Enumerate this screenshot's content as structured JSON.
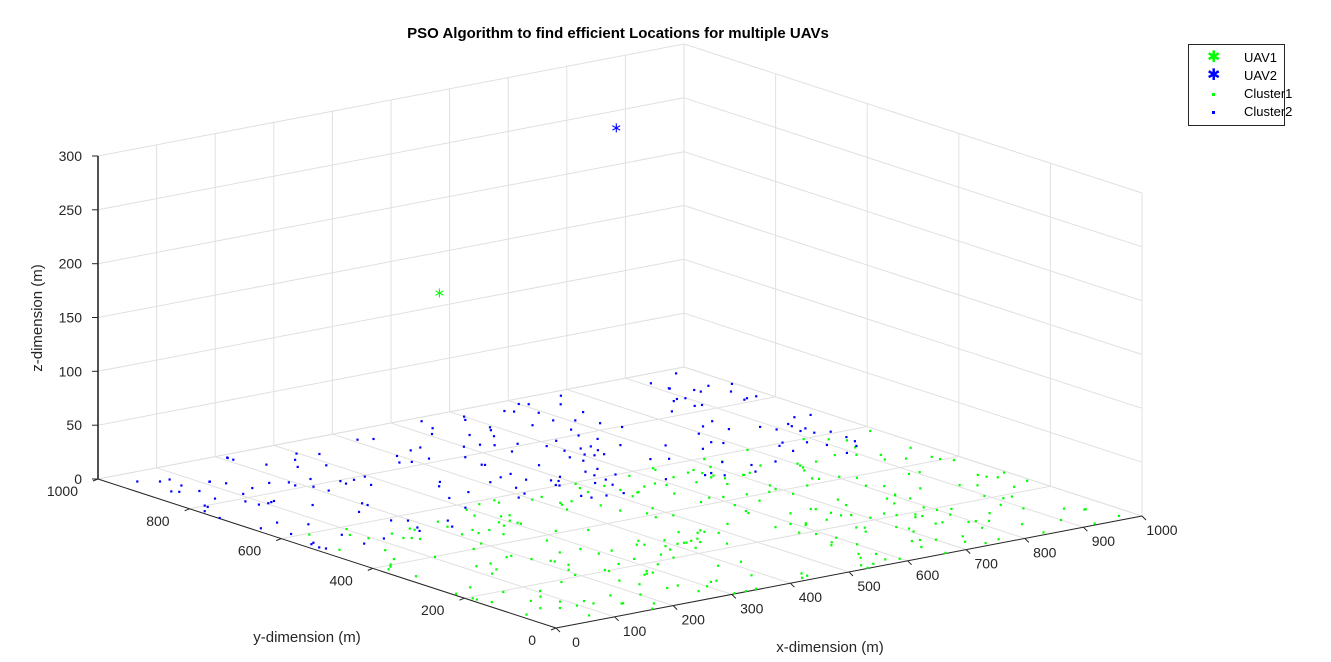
{
  "chart_data": {
    "type": "scatter",
    "title": "PSO Algorithm to find efficient Locations for multiple UAVs",
    "xlabel": "x-dimension (m)",
    "ylabel": "y-dimension (m)",
    "zlabel": "z-dimension (m)",
    "xlim": [
      0,
      1000
    ],
    "ylim": [
      0,
      1000
    ],
    "zlim": [
      0,
      300
    ],
    "xticks": [
      "0",
      "100",
      "200",
      "300",
      "400",
      "500",
      "600",
      "700",
      "800",
      "900",
      "1000"
    ],
    "yticks": [
      "0",
      "200",
      "400",
      "600",
      "800",
      "1000"
    ],
    "zticks": [
      "0",
      "50",
      "100",
      "150",
      "200",
      "250",
      "300"
    ],
    "grid": true,
    "legend_position": "top-right",
    "series": [
      {
        "name": "UAV1",
        "marker": "asterisk",
        "color": "#00ff00",
        "points": [
          [
            270,
            600,
            200
          ]
        ]
      },
      {
        "name": "UAV2",
        "marker": "asterisk",
        "color": "#0000ff",
        "points": [
          [
            650,
            700,
            300
          ]
        ]
      },
      {
        "name": "Cluster1",
        "marker": "point",
        "color": "#00ff00",
        "points": [],
        "count": 300,
        "x_range": [
          0,
          1000
        ],
        "y_range": [
          0,
          600
        ],
        "z": 0
      },
      {
        "name": "Cluster2",
        "marker": "point",
        "color": "#0000ff",
        "points": [],
        "count": 200,
        "x_range": [
          0,
          1000
        ],
        "y_range": [
          500,
          1000
        ],
        "z": 0
      }
    ]
  }
}
